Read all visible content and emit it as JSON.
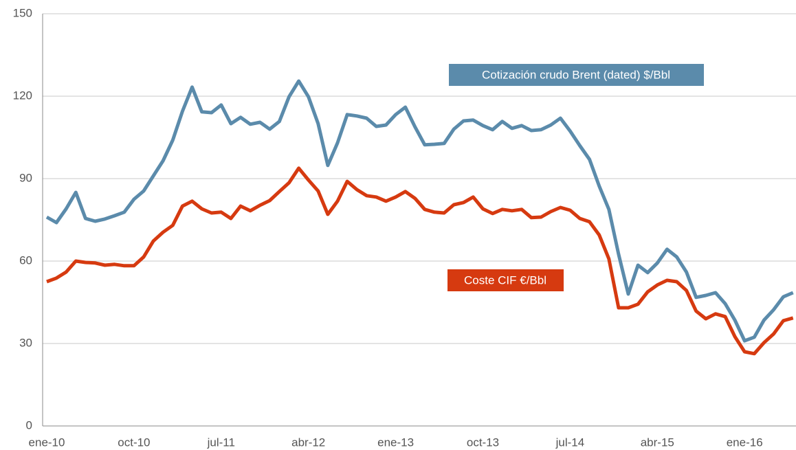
{
  "chart_data": {
    "type": "line",
    "categories": [
      "ene-10",
      null,
      null,
      null,
      null,
      null,
      null,
      null,
      null,
      "oct-10",
      null,
      null,
      null,
      null,
      null,
      null,
      null,
      null,
      "jul-11",
      null,
      null,
      null,
      null,
      null,
      null,
      null,
      null,
      "abr-12",
      null,
      null,
      null,
      null,
      null,
      null,
      null,
      null,
      "ene-13",
      null,
      null,
      null,
      null,
      null,
      null,
      null,
      null,
      "oct-13",
      null,
      null,
      null,
      null,
      null,
      null,
      null,
      null,
      "jul-14",
      null,
      null,
      null,
      null,
      null,
      null,
      null,
      null,
      "abr-15",
      null,
      null,
      null,
      null,
      null,
      null,
      null,
      null,
      "ene-16",
      null,
      null,
      null,
      null,
      null
    ],
    "series": [
      {
        "name": "Cotización crudo Brent (dated) $/Bbl",
        "color": "#5b8bab",
        "values": [
          76,
          74,
          79,
          85,
          75.5,
          74.5,
          75.3,
          76.5,
          77.8,
          82.5,
          85.5,
          91,
          96.5,
          104,
          114.5,
          123.3,
          114.3,
          114,
          116.8,
          110,
          112.3,
          109.8,
          110.5,
          108,
          110.8,
          119.8,
          125.5,
          119.8,
          110,
          94.8,
          103,
          113.3,
          112.8,
          112,
          109,
          109.5,
          113.3,
          116,
          108.8,
          102.3,
          102.5,
          102.8,
          108,
          111,
          111.3,
          109.3,
          107.8,
          110.8,
          108.3,
          109.3,
          107.5,
          107.8,
          109.5,
          112,
          107.3,
          102,
          97,
          87.3,
          78.8,
          62.5,
          48,
          58.5,
          55.8,
          59.3,
          64.3,
          61.5,
          56,
          46.8,
          47.5,
          48.5,
          44.5,
          38.5,
          31,
          32.3,
          38.5,
          42.3,
          47,
          48.5
        ]
      },
      {
        "name": "Coste CIF €/Bbl",
        "color": "#d63a10",
        "values": [
          52.5,
          53.8,
          56,
          60,
          59.5,
          59.3,
          58.5,
          58.8,
          58.3,
          58.3,
          61.5,
          67.3,
          70.5,
          73,
          80,
          81.8,
          79,
          77.5,
          77.8,
          75.5,
          80,
          78.3,
          80.3,
          82,
          85.3,
          88.5,
          93.8,
          89.5,
          85.5,
          77,
          81.8,
          89,
          86,
          83.8,
          83.3,
          81.8,
          83.3,
          85.3,
          82.8,
          78.8,
          77.8,
          77.5,
          80.5,
          81.3,
          83.3,
          79,
          77.3,
          78.8,
          78.3,
          78.8,
          75.8,
          76,
          78,
          79.5,
          78.5,
          75.5,
          74.3,
          69.5,
          60.8,
          43,
          43,
          44.3,
          48.8,
          51.3,
          53,
          52.5,
          49.3,
          41.8,
          39,
          40.8,
          39.8,
          32.5,
          27,
          26.3,
          30.3,
          33.5,
          38.3,
          39.3
        ]
      }
    ],
    "ylim": [
      0,
      150
    ],
    "yticks": [
      0,
      30,
      60,
      90,
      120,
      150
    ],
    "grid": true
  }
}
